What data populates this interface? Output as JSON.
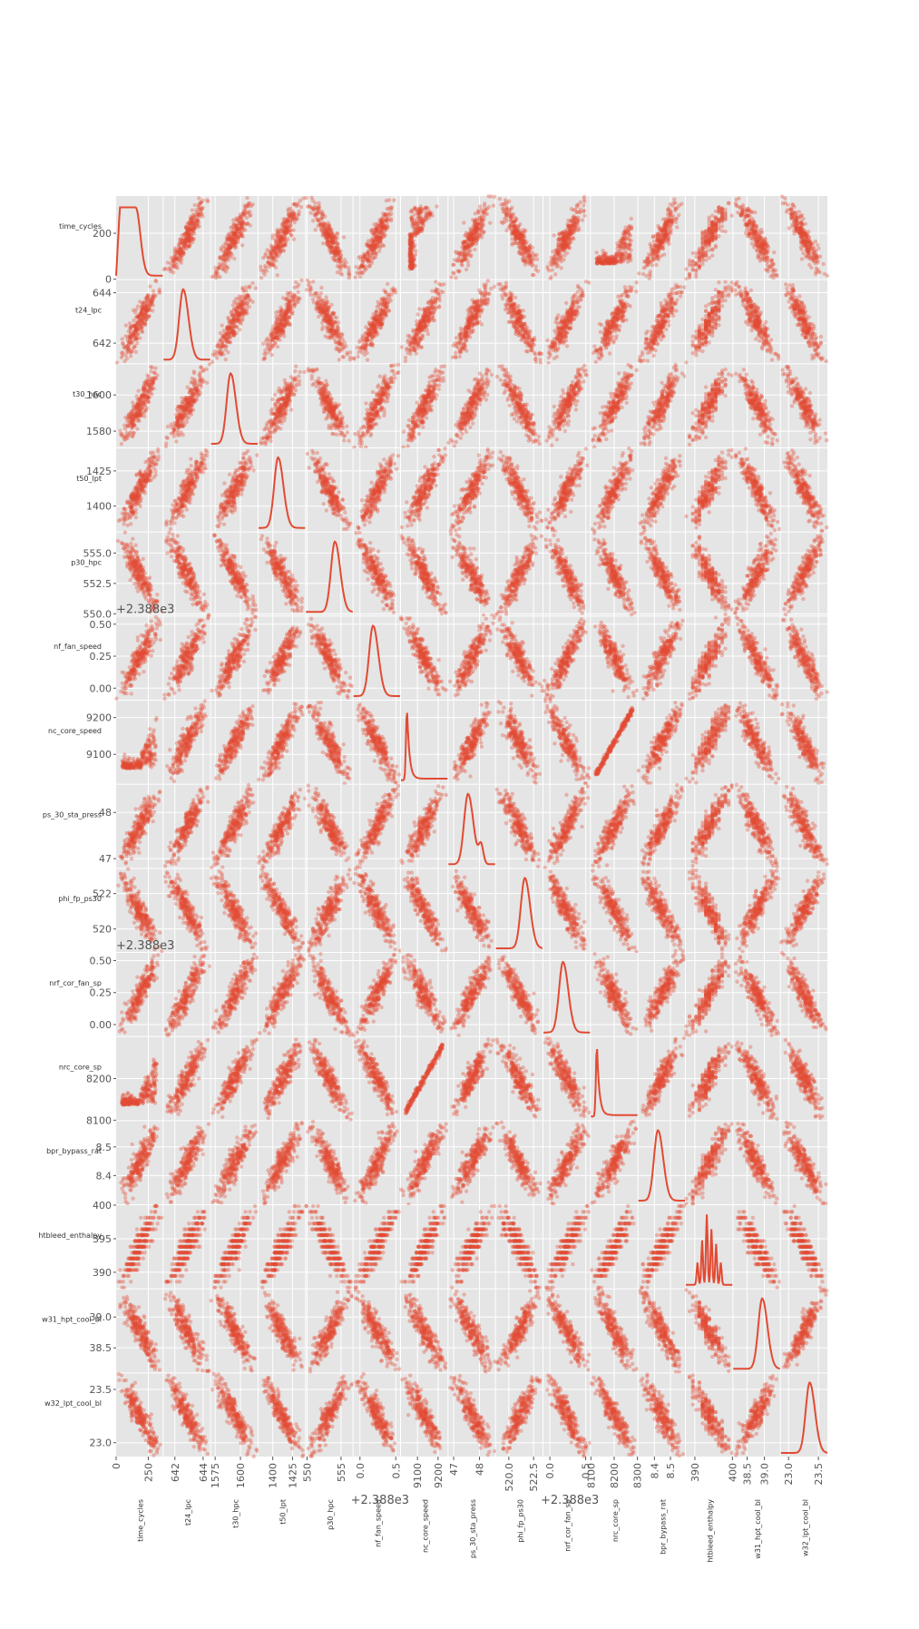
{
  "chart_data": {
    "type": "scatter_matrix",
    "title": "",
    "colors": {
      "marker": "#e24a33",
      "panel": "#e5e5e5",
      "grid": "#ffffff",
      "tick_text": "#555555"
    },
    "diagonal": "kde",
    "variables": [
      {
        "name": "time_cycles",
        "range": [
          0,
          362
        ],
        "ticks": [
          {
            "v": 0,
            "label": "0"
          },
          {
            "v": 200,
            "label": "200"
          }
        ],
        "xticks": [
          {
            "v": 0,
            "label": "0"
          },
          {
            "v": 250,
            "label": "250"
          }
        ],
        "offset_label": ""
      },
      {
        "name": "t24_lpc",
        "range": [
          641.2,
          644.5
        ],
        "ticks": [
          {
            "v": 642,
            "label": "642"
          },
          {
            "v": 644,
            "label": "644"
          }
        ],
        "xticks": [
          {
            "v": 642,
            "label": "642"
          },
          {
            "v": 644,
            "label": "644"
          }
        ],
        "offset_label": ""
      },
      {
        "name": "t30_hpc",
        "range": [
          1571,
          1617
        ],
        "ticks": [
          {
            "v": 1580,
            "label": "1580"
          },
          {
            "v": 1600,
            "label": "1600"
          }
        ],
        "xticks": [
          {
            "v": 1575,
            "label": "1575"
          },
          {
            "v": 1600,
            "label": "1600"
          }
        ],
        "offset_label": ""
      },
      {
        "name": "t50_lpt",
        "range": [
          1382,
          1441
        ],
        "ticks": [
          {
            "v": 1400,
            "label": "1400"
          },
          {
            "v": 1425,
            "label": "1425"
          }
        ],
        "xticks": [
          {
            "v": 1400,
            "label": "1400"
          },
          {
            "v": 1425,
            "label": "1425"
          }
        ],
        "offset_label": ""
      },
      {
        "name": "p30_hpc",
        "range": [
          549.85,
          556.7
        ],
        "ticks": [
          {
            "v": 550,
            "label": "550.0"
          },
          {
            "v": 552.5,
            "label": "552.5"
          },
          {
            "v": 555,
            "label": "555.0"
          }
        ],
        "xticks": [
          {
            "v": 550,
            "label": "550"
          },
          {
            "v": 555,
            "label": "555"
          }
        ],
        "offset_label": ""
      },
      {
        "name": "nf_fan_speed",
        "range": [
          -0.09,
          0.56
        ],
        "ticks": [
          {
            "v": 0,
            "label": "0.00"
          },
          {
            "v": 0.25,
            "label": "0.25"
          },
          {
            "v": 0.5,
            "label": "0.50"
          }
        ],
        "xticks": [
          {
            "v": 0,
            "label": "0.0"
          },
          {
            "v": 0.5,
            "label": "0.5"
          }
        ],
        "offset_label": "+2.388e3"
      },
      {
        "name": "nc_core_speed",
        "range": [
          9020,
          9246
        ],
        "ticks": [
          {
            "v": 9100,
            "label": "9100"
          },
          {
            "v": 9200,
            "label": "9200"
          }
        ],
        "xticks": [
          {
            "v": 9100,
            "label": "9100"
          },
          {
            "v": 9200,
            "label": "9200"
          }
        ],
        "offset_label": ""
      },
      {
        "name": "ps_30_sta_press",
        "range": [
          46.8,
          48.6
        ],
        "ticks": [
          {
            "v": 47,
            "label": "47"
          },
          {
            "v": 48,
            "label": "48"
          }
        ],
        "xticks": [
          {
            "v": 47,
            "label": "47"
          },
          {
            "v": 48,
            "label": "48"
          }
        ],
        "offset_label": ""
      },
      {
        "name": "phi_fp_ps30",
        "range": [
          518.7,
          523.4
        ],
        "ticks": [
          {
            "v": 520,
            "label": "520"
          },
          {
            "v": 522,
            "label": "522"
          }
        ],
        "xticks": [
          {
            "v": 520,
            "label": "520.0"
          },
          {
            "v": 522.5,
            "label": "522.5"
          }
        ],
        "offset_label": ""
      },
      {
        "name": "nrf_cor_fan_sp",
        "range": [
          -0.09,
          0.56
        ],
        "ticks": [
          {
            "v": 0,
            "label": "0.00"
          },
          {
            "v": 0.25,
            "label": "0.25"
          },
          {
            "v": 0.5,
            "label": "0.50"
          }
        ],
        "xticks": [
          {
            "v": 0,
            "label": "0.0"
          },
          {
            "v": 0.5,
            "label": "0.5"
          }
        ],
        "offset_label": "+2.388e3"
      },
      {
        "name": "nrc_core_sp",
        "range": [
          8100,
          8300
        ],
        "ticks": [
          {
            "v": 8100,
            "label": "8100"
          },
          {
            "v": 8200,
            "label": "8200"
          }
        ],
        "xticks": [
          {
            "v": 8100,
            "label": "8100"
          },
          {
            "v": 8200,
            "label": "8200"
          },
          {
            "v": 8300,
            "label": "8300"
          }
        ],
        "offset_label": ""
      },
      {
        "name": "bpr_bypass_rat",
        "range": [
          8.3,
          8.59
        ],
        "ticks": [
          {
            "v": 8.4,
            "label": "8.4"
          },
          {
            "v": 8.5,
            "label": "8.5"
          }
        ],
        "xticks": [
          {
            "v": 8.4,
            "label": "8.4"
          },
          {
            "v": 8.5,
            "label": "8.5"
          }
        ],
        "offset_label": ""
      },
      {
        "name": "htbleed_enthalpy",
        "range": [
          387.6,
          400
        ],
        "ticks": [
          {
            "v": 390,
            "label": "390"
          },
          {
            "v": 395,
            "label": "395"
          },
          {
            "v": 400,
            "label": "400"
          }
        ],
        "xticks": [
          {
            "v": 390,
            "label": "390"
          },
          {
            "v": 400,
            "label": "400"
          }
        ],
        "offset_label": ""
      },
      {
        "name": "w31_hpt_cool_bl",
        "range": [
          38.1,
          39.45
        ],
        "ticks": [
          {
            "v": 38.5,
            "label": "38.5"
          },
          {
            "v": 39.0,
            "label": "39.0"
          }
        ],
        "xticks": [
          {
            "v": 38.5,
            "label": "38.5"
          },
          {
            "v": 39.0,
            "label": "39.0"
          }
        ],
        "offset_label": ""
      },
      {
        "name": "w32_lpt_cool_bl",
        "range": [
          22.87,
          23.65
        ],
        "ticks": [
          {
            "v": 23.0,
            "label": "23.0"
          },
          {
            "v": 23.5,
            "label": "23.5"
          }
        ],
        "xticks": [
          {
            "v": 23.0,
            "label": "23.0"
          },
          {
            "v": 23.5,
            "label": "23.5"
          }
        ],
        "offset_label": ""
      }
    ],
    "correlation_signs": [
      [
        0,
        1,
        1,
        1,
        -1,
        1,
        2,
        1,
        -1,
        1,
        2,
        1,
        1,
        -1,
        -1
      ],
      [
        1,
        0,
        1,
        1,
        -1,
        1,
        1,
        1,
        -1,
        1,
        1,
        1,
        1,
        -1,
        -1
      ],
      [
        1,
        1,
        0,
        1,
        -1,
        1,
        1,
        1,
        -1,
        1,
        1,
        1,
        1,
        -1,
        -1
      ],
      [
        1,
        1,
        1,
        0,
        -1,
        1,
        1,
        1,
        -1,
        1,
        1,
        1,
        1,
        -1,
        -1
      ],
      [
        -1,
        -1,
        -1,
        -1,
        0,
        -1,
        -1,
        -1,
        1,
        -1,
        -1,
        -1,
        -1,
        1,
        1
      ],
      [
        1,
        1,
        1,
        1,
        -1,
        0,
        -1,
        1,
        -1,
        1,
        -1,
        1,
        1,
        -1,
        -1
      ],
      [
        2,
        1,
        1,
        1,
        -1,
        -1,
        0,
        1,
        -1,
        -1,
        3,
        1,
        1,
        -1,
        -1
      ],
      [
        1,
        1,
        1,
        1,
        -1,
        1,
        1,
        0,
        -1,
        1,
        1,
        1,
        1,
        -1,
        -1
      ],
      [
        -1,
        -1,
        -1,
        -1,
        1,
        -1,
        -1,
        -1,
        0,
        -1,
        -1,
        -1,
        -1,
        1,
        1
      ],
      [
        1,
        1,
        1,
        1,
        -1,
        1,
        -1,
        1,
        -1,
        0,
        -1,
        1,
        1,
        -1,
        -1
      ],
      [
        2,
        1,
        1,
        1,
        -1,
        -1,
        3,
        1,
        -1,
        -1,
        0,
        1,
        1,
        -1,
        -1
      ],
      [
        1,
        1,
        1,
        1,
        -1,
        1,
        1,
        1,
        -1,
        1,
        1,
        0,
        1,
        -1,
        -1
      ],
      [
        1,
        1,
        1,
        1,
        -1,
        1,
        1,
        1,
        -1,
        1,
        1,
        1,
        0,
        -1,
        -1
      ],
      [
        -1,
        -1,
        -1,
        -1,
        1,
        -1,
        -1,
        -1,
        1,
        -1,
        -1,
        -1,
        -1,
        0,
        1
      ],
      [
        -1,
        -1,
        -1,
        -1,
        1,
        -1,
        -1,
        -1,
        1,
        -1,
        -1,
        -1,
        -1,
        1,
        0
      ]
    ]
  }
}
